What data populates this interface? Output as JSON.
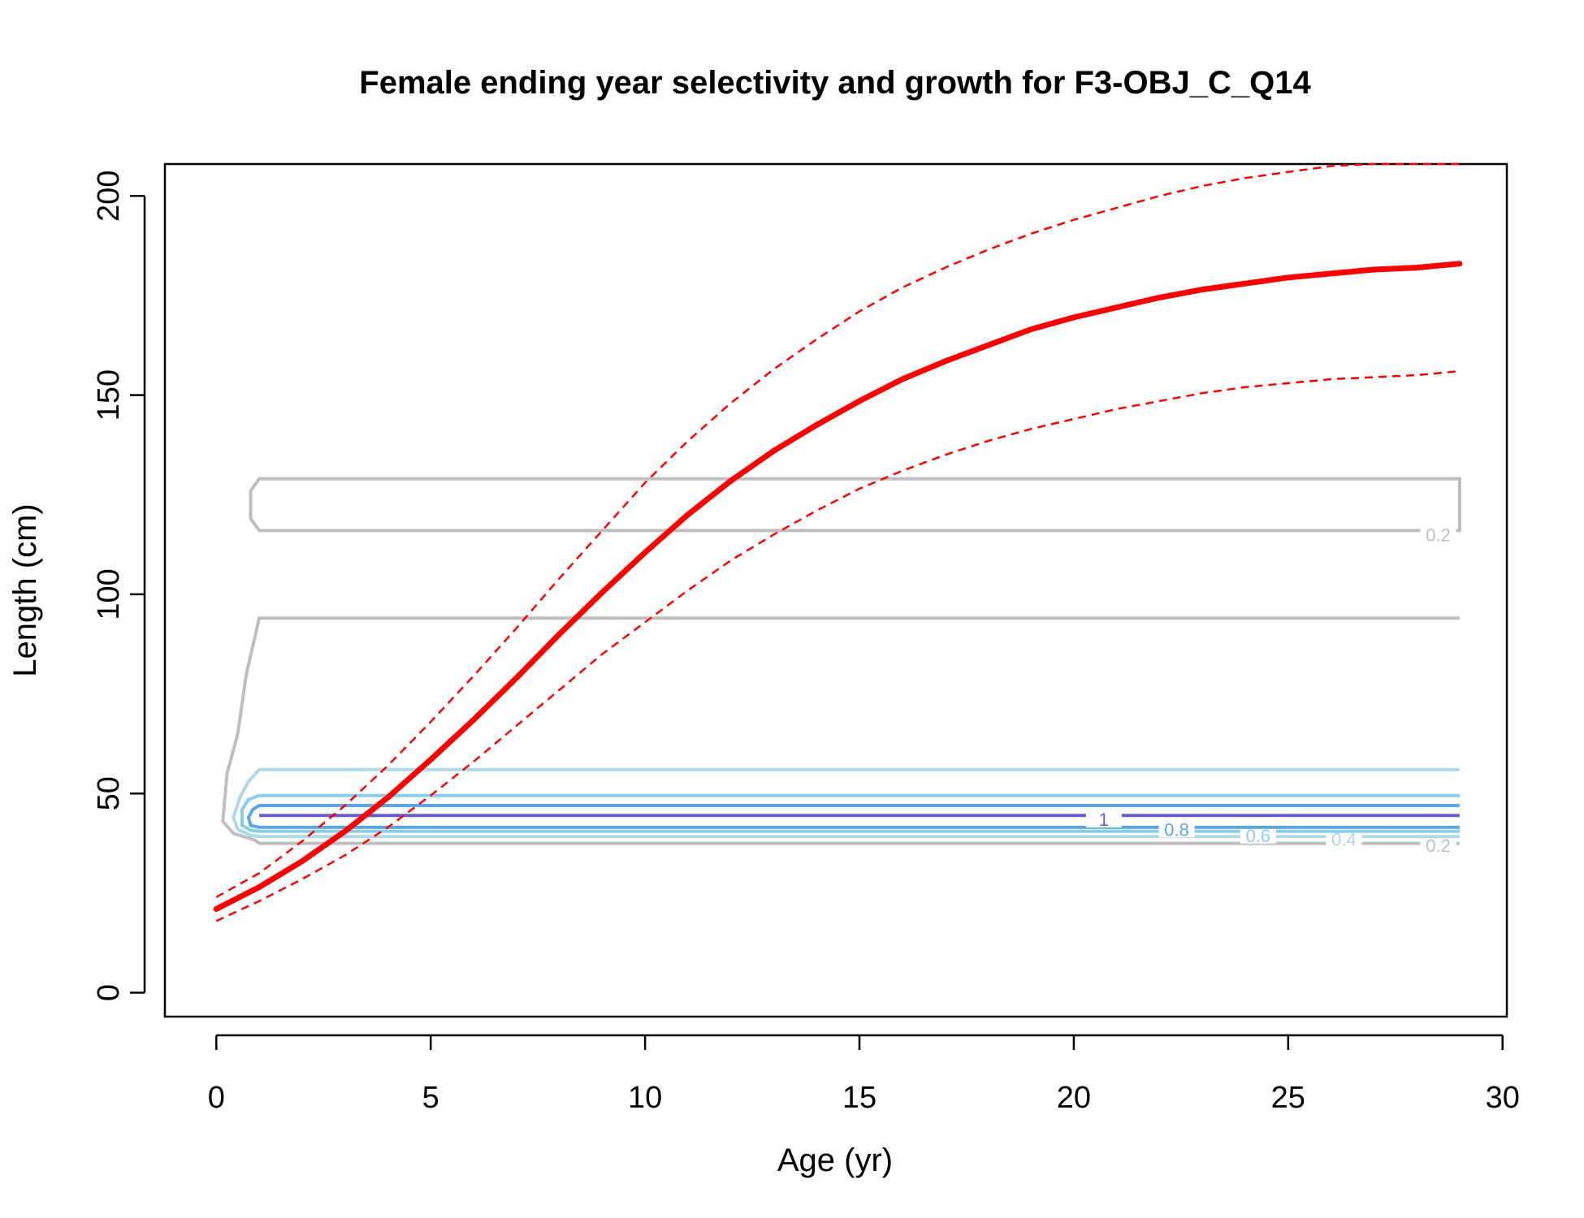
{
  "chart_data": {
    "type": "line",
    "title": "Female ending year selectivity and growth for F3-OBJ_C_Q14",
    "xlabel": "Age (yr)",
    "ylabel": "Length (cm)",
    "xlim": [
      -1.2,
      30.1
    ],
    "ylim": [
      -6,
      208
    ],
    "xticks": [
      0,
      5,
      10,
      15,
      20,
      25,
      30
    ],
    "yticks": [
      0,
      50,
      100,
      150,
      200
    ],
    "grid": false,
    "legend": "none",
    "growth": {
      "mean": {
        "color": "#ff0000",
        "x": [
          0,
          1,
          2,
          3,
          4,
          5,
          6,
          7,
          8,
          9,
          10,
          11,
          12,
          13,
          14,
          15,
          16,
          17,
          18,
          19,
          20,
          21,
          22,
          23,
          24,
          25,
          26,
          27,
          28,
          29
        ],
        "y": [
          21,
          26.5,
          33,
          40.5,
          49,
          58.5,
          68.5,
          79,
          90,
          100.5,
          110.5,
          120,
          128.5,
          136,
          142.5,
          148.5,
          154,
          158.5,
          162.5,
          166.5,
          169.5,
          172,
          174.5,
          176.5,
          178,
          179.5,
          180.5,
          181.5,
          182,
          183
        ]
      },
      "upper": {
        "color": "#ff0000",
        "x": [
          0,
          1,
          2,
          3,
          4,
          5,
          6,
          7,
          8,
          9,
          10,
          11,
          12,
          13,
          14,
          15,
          16,
          17,
          18,
          19,
          20,
          21,
          22,
          23,
          24,
          25,
          26,
          27,
          28,
          29
        ],
        "y": [
          24,
          30,
          38,
          47,
          57,
          68,
          79.5,
          91.5,
          104,
          116,
          128,
          138.5,
          148,
          156.5,
          164,
          171,
          177,
          182,
          186.5,
          190.5,
          194,
          197,
          200,
          202.5,
          204.5,
          206,
          207.5,
          208.5,
          209,
          210
        ]
      },
      "lower": {
        "color": "#ff0000",
        "x": [
          0,
          1,
          2,
          3,
          4,
          5,
          6,
          7,
          8,
          9,
          10,
          11,
          12,
          13,
          14,
          15,
          16,
          17,
          18,
          19,
          20,
          21,
          22,
          23,
          24,
          25,
          26,
          27,
          28,
          29
        ],
        "y": [
          18,
          23,
          28.5,
          34.5,
          41.5,
          49.5,
          58,
          67,
          76,
          85,
          93,
          101,
          108.5,
          115,
          121,
          126.5,
          131,
          135,
          138.5,
          141.5,
          144,
          146.5,
          148.5,
          150.5,
          152,
          153,
          154,
          154.5,
          155,
          156
        ]
      }
    },
    "selectivity_contours": [
      {
        "level": "0.2",
        "color": "#bebebe",
        "x": [
          1,
          29,
          29,
          1,
          0.8,
          0.8,
          1,
          29
        ],
        "y": [
          129,
          129,
          116,
          116,
          119,
          126,
          129,
          129
        ],
        "label": "0.2",
        "label_x": 28.5,
        "label_y": 115
      },
      {
        "level": "0.2",
        "color": "#bebebe",
        "x": [
          29,
          1,
          0.7,
          0.5,
          0.25,
          0.15,
          0.4,
          0.9,
          1,
          29
        ],
        "y": [
          94,
          94,
          80,
          65,
          55,
          43,
          40,
          38.3,
          37.5,
          37.5
        ],
        "label": "0.2",
        "label_x": 28.5,
        "label_y": 37
      },
      {
        "level": "0.4",
        "color": "#add8e6",
        "x": [
          29,
          1,
          0.75,
          0.55,
          0.4,
          0.5,
          0.8,
          1,
          29
        ],
        "y": [
          56,
          56,
          53,
          49,
          44,
          41,
          39.5,
          39.2,
          39.2
        ],
        "label": "0.4",
        "label_x": 26.3,
        "label_y": 38.5
      },
      {
        "level": "0.6",
        "color": "#87ceeb",
        "x": [
          29,
          1,
          0.75,
          0.6,
          0.6,
          0.8,
          1,
          29
        ],
        "y": [
          49.5,
          49.5,
          48.5,
          46,
          42,
          40.8,
          40.5,
          40.5
        ],
        "label": "0.6",
        "label_x": 24.3,
        "label_y": 39.5
      },
      {
        "level": "0.8",
        "color": "#5ba6e6",
        "x": [
          29,
          1,
          0.85,
          0.75,
          0.8,
          1,
          29
        ],
        "y": [
          47,
          47,
          46,
          44,
          42,
          41.5,
          41.5
        ],
        "label": "0.8",
        "label_x": 22.4,
        "label_y": 41
      },
      {
        "level": "1",
        "color": "#6a5acd",
        "x": [
          1,
          29
        ],
        "y": [
          44.5,
          44.5
        ],
        "label": "1",
        "label_x": 20.7,
        "label_y": 43.5
      }
    ]
  }
}
